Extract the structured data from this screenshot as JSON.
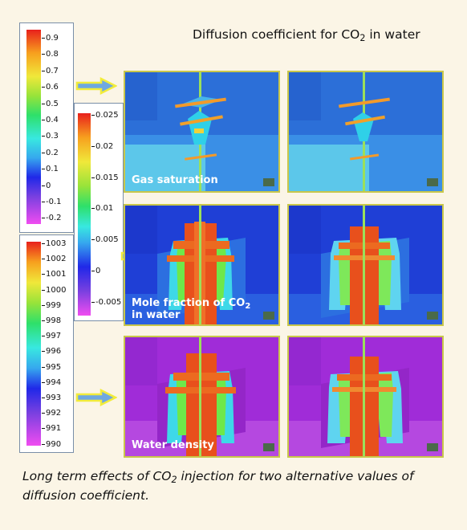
{
  "title": {
    "text": "Diffusion coefficient for CO",
    "sub": "2",
    "after": " in water"
  },
  "legend_gas": {
    "ticks": [
      "0.9",
      "0.8",
      "0.7",
      "0.6",
      "0.5",
      "0.4",
      "0.3",
      "0.2",
      "0.1",
      "0",
      "-0.1",
      "-0.2"
    ]
  },
  "legend_mole": {
    "ticks": [
      "0.025",
      "0.02",
      "0.015",
      "0.01",
      "0.005",
      "0",
      "-0.005"
    ]
  },
  "legend_density": {
    "ticks": [
      "1003",
      "1002",
      "1001",
      "1000",
      "999",
      "998",
      "997",
      "996",
      "995",
      "994",
      "993",
      "992",
      "991",
      "990"
    ]
  },
  "panels": {
    "gas_label": "Gas saturation",
    "mole_label_1": "Mole fraction of CO",
    "mole_label_sub": "2",
    "mole_label_2": "in water",
    "density_label": "Water density"
  },
  "caption": {
    "part1": "Long term effects of CO",
    "sub": "2",
    "part2": " injection for two alternative values of diffusion coefficient."
  },
  "colors": {
    "background": "#fbf5e6",
    "panel_border": "#c9c74a",
    "arrow_fill": "#6fa8e0",
    "arrow_outline": "#f2ec3a"
  }
}
